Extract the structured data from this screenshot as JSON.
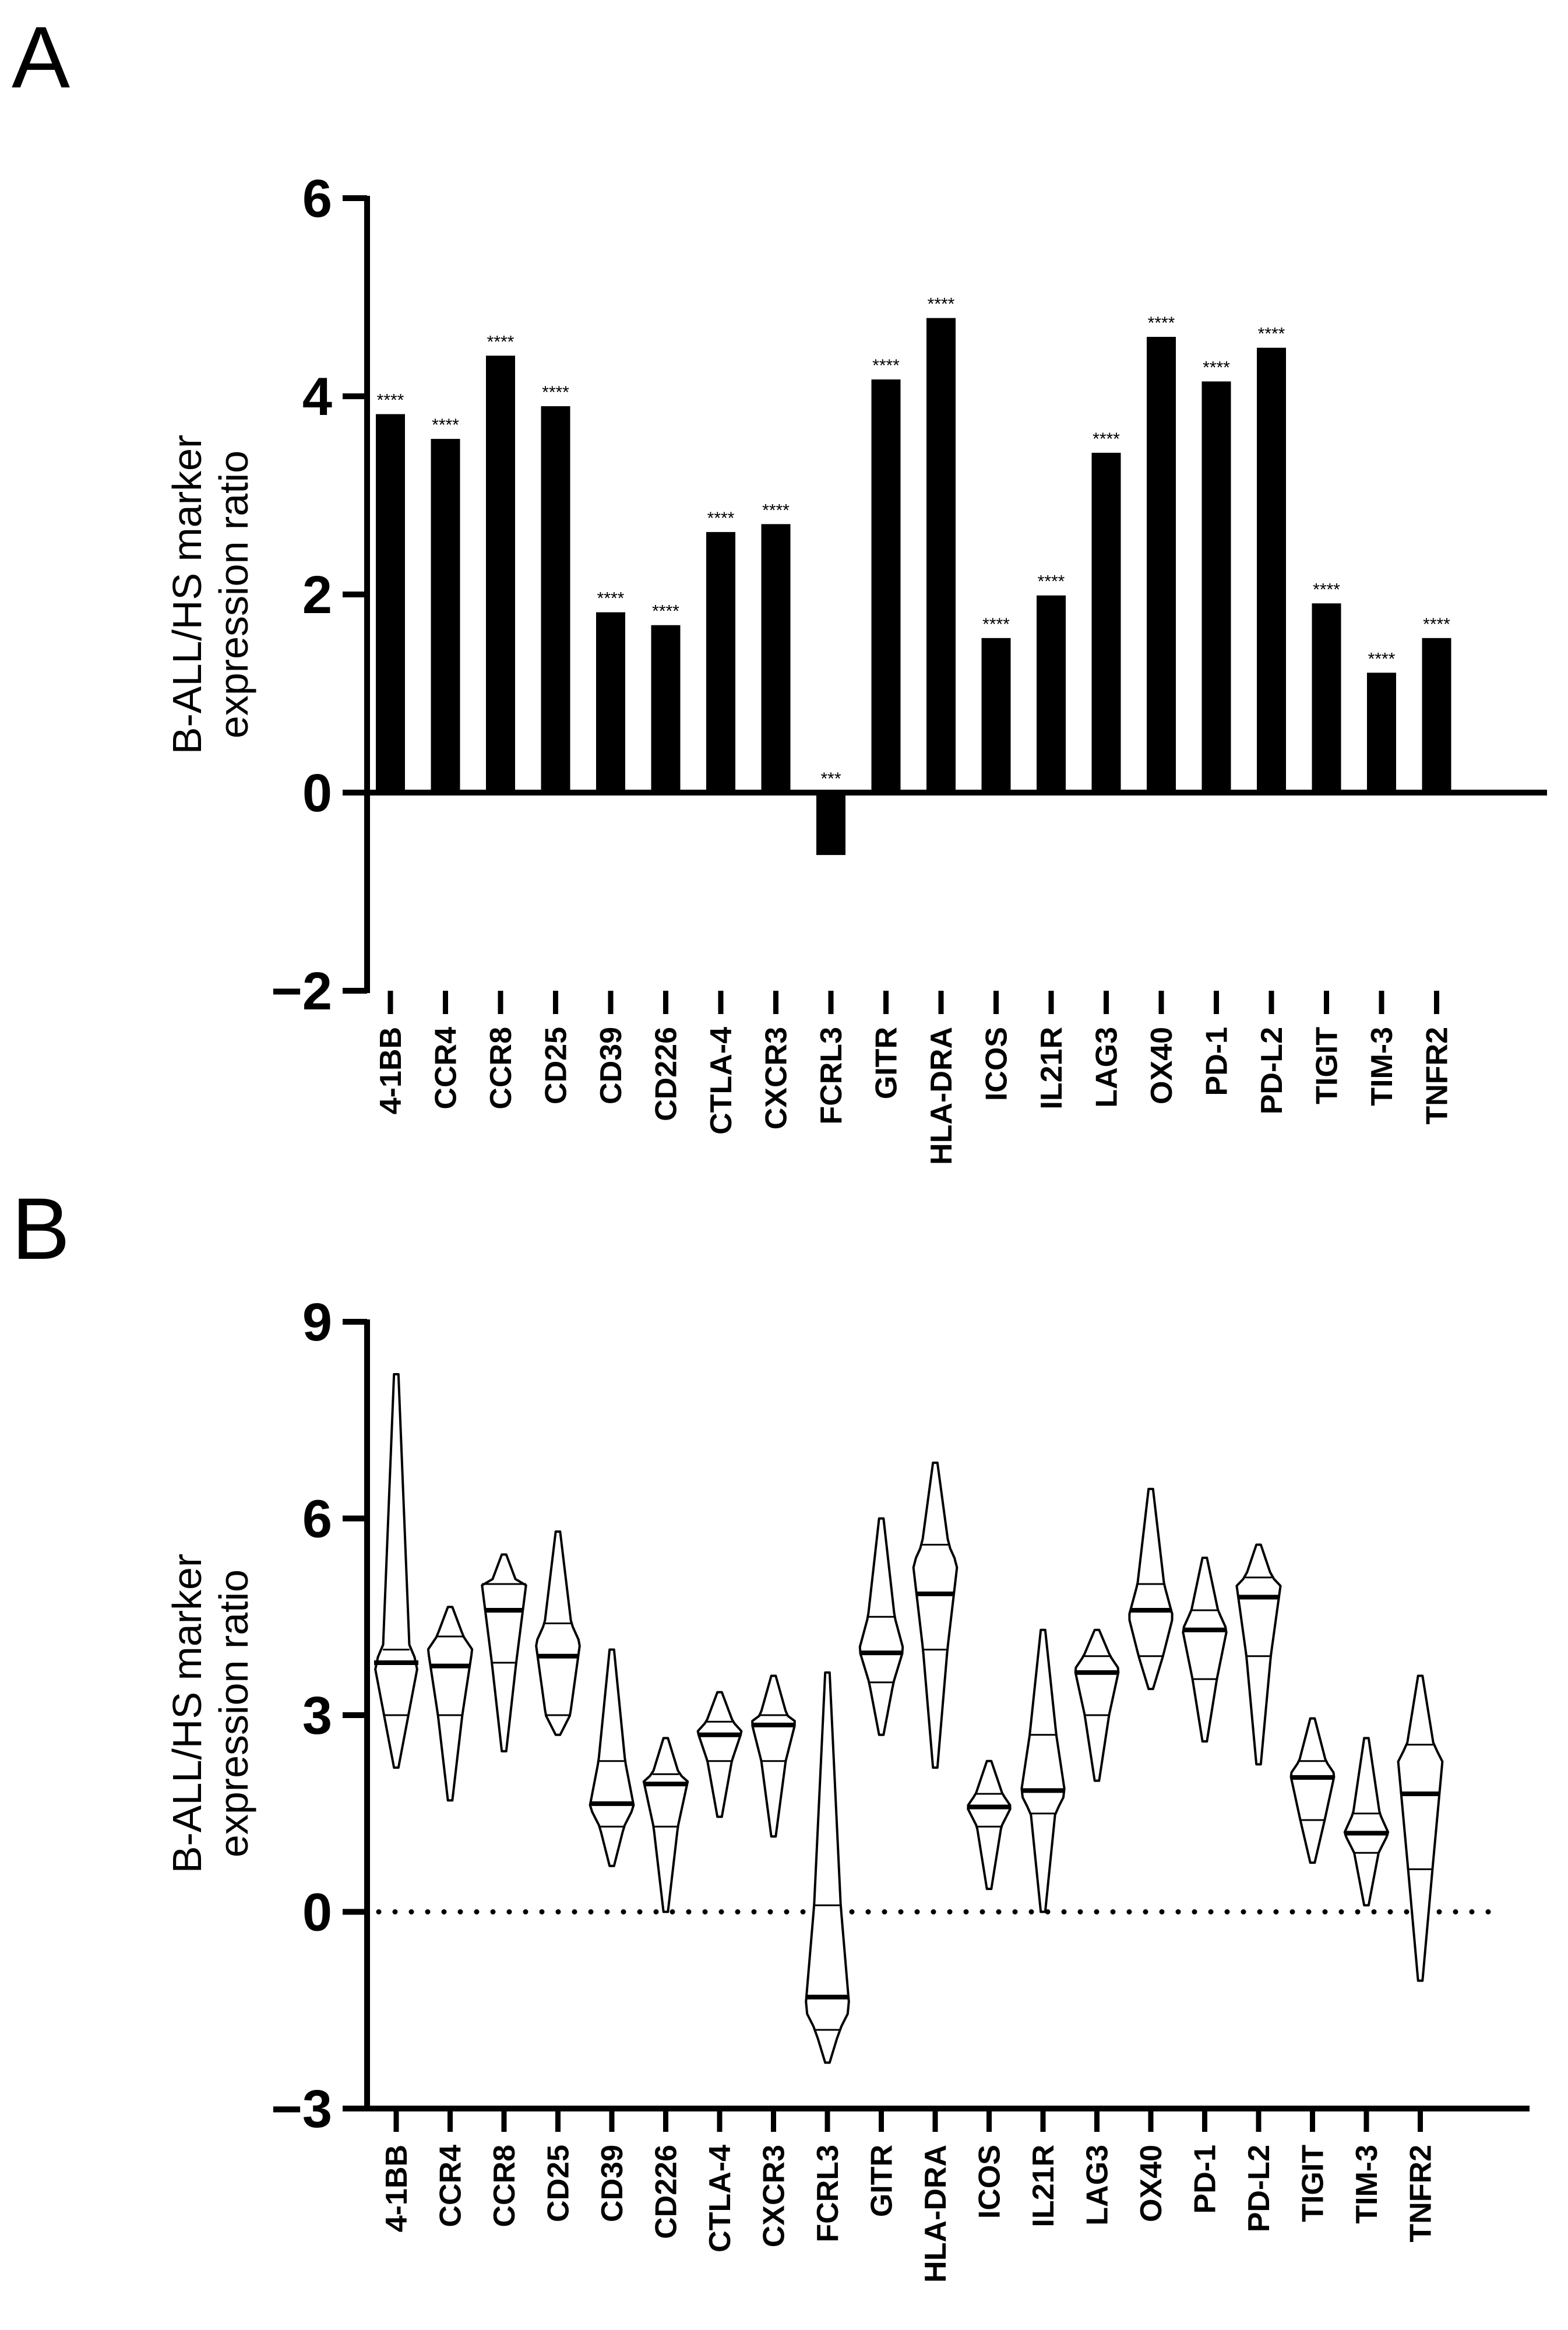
{
  "chart_data": [
    {
      "panel": "A",
      "type": "bar",
      "ylabel": [
        "B-ALL/HS marker",
        "expression ratio"
      ],
      "ylim": [
        -2,
        6
      ],
      "yticks": [
        6,
        4,
        2,
        0,
        -2
      ],
      "ytick_labels": [
        "6",
        "4",
        "2",
        "0",
        "−2"
      ],
      "categories": [
        "4-1BB",
        "CCR4",
        "CCR8",
        "CD25",
        "CD39",
        "CD226",
        "CTLA-4",
        "CXCR3",
        "FCRL3",
        "GITR",
        "HLA-DRA",
        "ICOS",
        "IL21R",
        "LAG3",
        "OX40",
        "PD-1",
        "PD-L2",
        "TIGIT",
        "TIM-3",
        "TNFR2"
      ],
      "values": [
        3.82,
        3.57,
        4.41,
        3.9,
        1.82,
        1.69,
        2.63,
        2.71,
        -0.63,
        4.17,
        4.79,
        1.56,
        1.99,
        3.43,
        4.6,
        4.15,
        4.49,
        1.91,
        1.21,
        1.56
      ],
      "significance": [
        "****",
        "****",
        "****",
        "****",
        "****",
        "****",
        "****",
        "****",
        "***",
        "****",
        "****",
        "****",
        "****",
        "****",
        "****",
        "****",
        "****",
        "****",
        "****",
        "****"
      ]
    },
    {
      "panel": "B",
      "type": "violin",
      "ylabel": [
        "B-ALL/HS marker",
        "expression ratio"
      ],
      "ylim": [
        -3,
        9
      ],
      "yticks": [
        9,
        6,
        3,
        0,
        -3
      ],
      "ytick_labels": [
        "9",
        "6",
        "3",
        "0",
        "−3"
      ],
      "reference_line": 0,
      "categories": [
        "4-1BB",
        "CCR4",
        "CCR8",
        "CD25",
        "CD39",
        "CD226",
        "CTLA-4",
        "CXCR3",
        "FCRL3",
        "GITR",
        "HLA-DRA",
        "ICOS",
        "IL21R",
        "LAG3",
        "OX40",
        "PD-1",
        "PD-L2",
        "TIGIT",
        "TIM-3",
        "TNFR2"
      ],
      "violins": [
        {
          "min": 2.2,
          "q1": 3.0,
          "median": 3.8,
          "q3": 4.0,
          "max": 8.2,
          "mode": 3.8
        },
        {
          "min": 1.7,
          "q1": 3.0,
          "median": 3.75,
          "q3": 4.2,
          "max": 4.65,
          "mode": 4.0
        },
        {
          "min": 2.45,
          "q1": 3.8,
          "median": 4.6,
          "q3": 5.0,
          "max": 5.45,
          "mode": 5.0
        },
        {
          "min": 2.7,
          "q1": 3.0,
          "median": 3.9,
          "q3": 4.4,
          "max": 5.8,
          "mode": 4.1
        },
        {
          "min": 0.7,
          "q1": 1.3,
          "median": 1.65,
          "q3": 2.3,
          "max": 4.0,
          "mode": 1.6
        },
        {
          "min": 0.0,
          "q1": 1.3,
          "median": 1.95,
          "q3": 2.1,
          "max": 2.65,
          "mode": 2.0
        },
        {
          "min": 1.45,
          "q1": 2.3,
          "median": 2.7,
          "q3": 2.9,
          "max": 3.35,
          "mode": 2.75
        },
        {
          "min": 1.15,
          "q1": 2.3,
          "median": 2.85,
          "q3": 3.0,
          "max": 3.6,
          "mode": 2.9
        },
        {
          "min": -2.3,
          "q1": -1.8,
          "median": -1.3,
          "q3": 0.1,
          "max": 3.65,
          "mode": -1.5
        },
        {
          "min": 2.7,
          "q1": 3.5,
          "median": 3.95,
          "q3": 4.5,
          "max": 6.0,
          "mode": 4.0
        },
        {
          "min": 2.2,
          "q1": 4.0,
          "median": 4.85,
          "q3": 5.6,
          "max": 6.85,
          "mode": 5.3
        },
        {
          "min": 0.35,
          "q1": 1.3,
          "median": 1.6,
          "q3": 1.8,
          "max": 2.3,
          "mode": 1.6
        },
        {
          "min": 0.0,
          "q1": 1.5,
          "median": 1.85,
          "q3": 2.7,
          "max": 4.3,
          "mode": 1.8
        },
        {
          "min": 2.0,
          "q1": 3.0,
          "median": 3.65,
          "q3": 3.9,
          "max": 4.3,
          "mode": 3.7
        },
        {
          "min": 3.4,
          "q1": 3.9,
          "median": 4.6,
          "q3": 5.0,
          "max": 6.45,
          "mode": 4.5
        },
        {
          "min": 2.6,
          "q1": 3.55,
          "median": 4.3,
          "q3": 4.6,
          "max": 5.4,
          "mode": 4.3
        },
        {
          "min": 2.25,
          "q1": 3.9,
          "median": 4.8,
          "q3": 5.1,
          "max": 5.6,
          "mode": 5.0
        },
        {
          "min": 0.75,
          "q1": 1.4,
          "median": 2.05,
          "q3": 2.3,
          "max": 2.95,
          "mode": 2.1
        },
        {
          "min": 0.1,
          "q1": 0.9,
          "median": 1.2,
          "q3": 1.5,
          "max": 2.65,
          "mode": 1.2
        },
        {
          "min": -1.05,
          "q1": 0.65,
          "median": 1.8,
          "q3": 2.55,
          "max": 3.6,
          "mode": 2.3
        }
      ]
    }
  ],
  "panel_labels": [
    "A",
    "B"
  ]
}
